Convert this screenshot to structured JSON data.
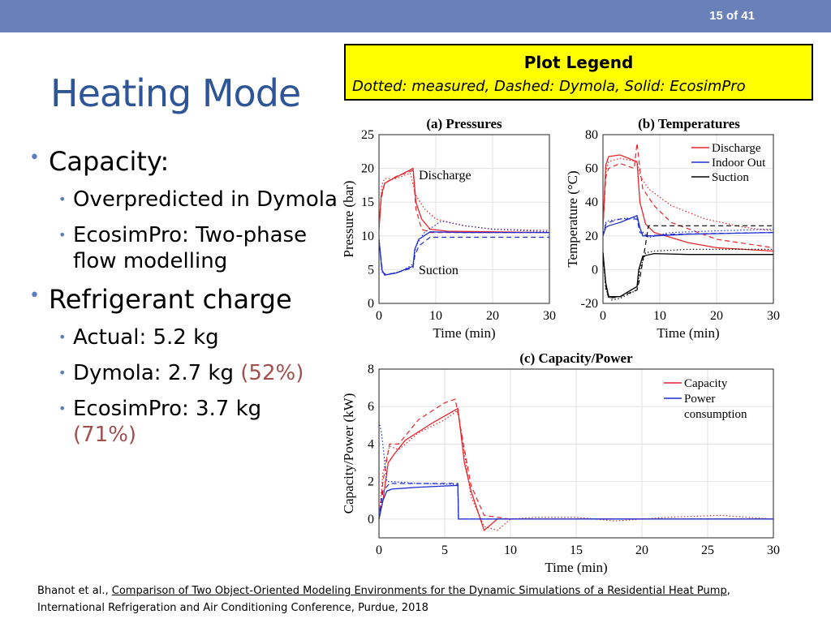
{
  "slide": {
    "number": "15 of 41",
    "title": "Heating Mode"
  },
  "legend_box": {
    "title": "Plot Legend",
    "description": "Dotted: measured, Dashed: Dymola, Solid: EcosimPro"
  },
  "bullets": {
    "capacity": "Capacity:",
    "overpredicted": "Overpredicted in Dymola",
    "ecosimpro_text": "EcosimPro: Two-phase flow modelling",
    "charge": "Refrigerant charge",
    "actual": "Actual: 5.2 kg",
    "dymola": "Dymola: 2.7 kg ",
    "dymola_pct": "(52%)",
    "ecosim": "EcosimPro: 3.7 kg",
    "ecosim_pct": "(71%)"
  },
  "citation": {
    "authors": "Bhanot et al., ",
    "link": "Comparison of Two Object-Oriented Modeling Environments for the Dynamic Simulations of a Residential Heat Pump",
    "after_link": ",",
    "line2": "International Refrigeration and Air Conditioning Conference, Purdue, 2018"
  },
  "colors": {
    "topbar": "#6a80b8",
    "title": "#2e5597",
    "bullet": "#5b7cc0",
    "pct": "#a0504e",
    "legend_bg": "#ffff00",
    "red": "#e8242a",
    "blue": "#1f2fd0",
    "black": "#000000"
  },
  "chart_data": [
    {
      "type": "line",
      "title": "(a) Pressures",
      "xlabel": "Time (min)",
      "ylabel": "Pressure (bar)",
      "xlim": [
        0,
        30
      ],
      "ylim": [
        0,
        25
      ],
      "xticks": [
        0,
        10,
        20,
        30
      ],
      "yticks": [
        0,
        5,
        10,
        15,
        20,
        25
      ],
      "grid": true,
      "annotations": [
        "Discharge",
        "Suction"
      ],
      "series": [
        {
          "color": "red",
          "style": "solid",
          "points": [
            [
              0,
              11
            ],
            [
              0.4,
              16
            ],
            [
              1,
              17.8
            ],
            [
              3,
              18.7
            ],
            [
              6,
              20
            ],
            [
              6.5,
              15
            ],
            [
              7.5,
              12.5
            ],
            [
              9,
              11
            ],
            [
              12,
              10.7
            ],
            [
              20,
              10.6
            ],
            [
              30,
              10.5
            ]
          ]
        },
        {
          "color": "red",
          "style": "dashed",
          "points": [
            [
              0,
              11
            ],
            [
              0.4,
              15.5
            ],
            [
              1,
              17.8
            ],
            [
              3,
              18.8
            ],
            [
              6,
              19.7
            ],
            [
              6.5,
              14
            ],
            [
              7.5,
              11
            ],
            [
              9,
              10.5
            ],
            [
              15,
              10.5
            ],
            [
              30,
              10.5
            ]
          ]
        },
        {
          "color": "red",
          "style": "dotted",
          "points": [
            [
              0,
              11
            ],
            [
              0.5,
              17.5
            ],
            [
              1,
              18.5
            ],
            [
              3,
              18.5
            ],
            [
              5.5,
              19.3
            ],
            [
              6.5,
              16
            ],
            [
              8,
              14
            ],
            [
              10,
              12.5
            ],
            [
              15,
              11.5
            ],
            [
              20,
              11
            ],
            [
              30,
              10.8
            ]
          ]
        },
        {
          "color": "blue",
          "style": "solid",
          "points": [
            [
              0,
              9.5
            ],
            [
              0.5,
              5
            ],
            [
              1,
              4.2
            ],
            [
              3,
              4.5
            ],
            [
              6,
              5.5
            ],
            [
              6.3,
              8
            ],
            [
              7,
              9.5
            ],
            [
              9,
              10.6
            ],
            [
              15,
              10.5
            ],
            [
              30,
              10.5
            ]
          ]
        },
        {
          "color": "blue",
          "style": "dashed",
          "points": [
            [
              0,
              9.5
            ],
            [
              0.6,
              4.8
            ],
            [
              1,
              4.3
            ],
            [
              3,
              4.5
            ],
            [
              6,
              5.3
            ],
            [
              6.3,
              7
            ],
            [
              7,
              8.5
            ],
            [
              9,
              9.8
            ],
            [
              15,
              9.8
            ],
            [
              30,
              9.8
            ]
          ]
        },
        {
          "color": "blue",
          "style": "dotted",
          "points": [
            [
              0,
              9.5
            ],
            [
              0.6,
              4.5
            ],
            [
              1.5,
              4.3
            ],
            [
              4,
              4.8
            ],
            [
              6,
              5.8
            ],
            [
              6.5,
              8.5
            ],
            [
              8,
              10.5
            ],
            [
              11,
              12.2
            ],
            [
              15,
              11.5
            ],
            [
              20,
              11
            ],
            [
              30,
              10.6
            ]
          ]
        }
      ]
    },
    {
      "type": "line",
      "title": "(b) Temperatures",
      "xlabel": "Time (min)",
      "ylabel": "Temperature (°C)",
      "xlim": [
        0,
        30
      ],
      "ylim": [
        -20,
        80
      ],
      "xticks": [
        0,
        10,
        20,
        30
      ],
      "yticks": [
        -20,
        0,
        20,
        40,
        60,
        80
      ],
      "grid": true,
      "legend": {
        "position": "top-right",
        "entries": [
          {
            "name": "Discharge",
            "color": "red"
          },
          {
            "name": "Indoor Out",
            "color": "blue"
          },
          {
            "name": "Suction",
            "color": "black"
          }
        ]
      },
      "series": [
        {
          "color": "red",
          "style": "solid",
          "points": [
            [
              0,
              25
            ],
            [
              0.5,
              62
            ],
            [
              1,
              67
            ],
            [
              3,
              68
            ],
            [
              6,
              64
            ],
            [
              6.5,
              40
            ],
            [
              7.5,
              27
            ],
            [
              9,
              22
            ],
            [
              15,
              16
            ],
            [
              20,
              13
            ],
            [
              30,
              11
            ]
          ]
        },
        {
          "color": "red",
          "style": "dashed",
          "points": [
            [
              0,
              25
            ],
            [
              0.5,
              55
            ],
            [
              1,
              60
            ],
            [
              3,
              63
            ],
            [
              5.5,
              60
            ],
            [
              6,
              75
            ],
            [
              6.5,
              60
            ],
            [
              7,
              48
            ],
            [
              9,
              38
            ],
            [
              12,
              28
            ],
            [
              20,
              18
            ],
            [
              30,
              13
            ]
          ]
        },
        {
          "color": "red",
          "style": "dotted",
          "points": [
            [
              0,
              25
            ],
            [
              0.5,
              58
            ],
            [
              1,
              64
            ],
            [
              3,
              66
            ],
            [
              6,
              64
            ],
            [
              6.5,
              56
            ],
            [
              8,
              48
            ],
            [
              12,
              38
            ],
            [
              18,
              30
            ],
            [
              25,
              25
            ],
            [
              30,
              23
            ]
          ]
        },
        {
          "color": "blue",
          "style": "solid",
          "points": [
            [
              0,
              20
            ],
            [
              0.5,
              25
            ],
            [
              1,
              26
            ],
            [
              3,
              28
            ],
            [
              6,
              32
            ],
            [
              6.5,
              25
            ],
            [
              7,
              20
            ],
            [
              9,
              20
            ],
            [
              15,
              21
            ],
            [
              30,
              22
            ]
          ]
        },
        {
          "color": "blue",
          "style": "dashed",
          "points": [
            [
              0,
              20
            ],
            [
              0.5,
              27
            ],
            [
              1,
              28
            ],
            [
              3,
              30
            ],
            [
              6,
              30
            ],
            [
              6.5,
              22
            ],
            [
              8,
              20
            ],
            [
              12,
              21
            ],
            [
              30,
              22
            ]
          ]
        },
        {
          "color": "blue",
          "style": "dotted",
          "points": [
            [
              0,
              20
            ],
            [
              0.5,
              28
            ],
            [
              1,
              29
            ],
            [
              3,
              30
            ],
            [
              6,
              31
            ],
            [
              6.5,
              24
            ],
            [
              8,
              19
            ],
            [
              12,
              22
            ],
            [
              20,
              23
            ],
            [
              30,
              24
            ]
          ]
        },
        {
          "color": "black",
          "style": "solid",
          "points": [
            [
              0,
              10
            ],
            [
              0.5,
              -8
            ],
            [
              1,
              -16
            ],
            [
              3,
              -16
            ],
            [
              6,
              -10
            ],
            [
              6.3,
              0
            ],
            [
              7,
              8
            ],
            [
              9,
              9.5
            ],
            [
              15,
              9
            ],
            [
              30,
              9
            ]
          ]
        },
        {
          "color": "black",
          "style": "dashed",
          "points": [
            [
              0,
              10
            ],
            [
              0.5,
              -10
            ],
            [
              1,
              -17
            ],
            [
              3,
              -16
            ],
            [
              6,
              -12
            ],
            [
              6.5,
              -5
            ],
            [
              7.5,
              15
            ],
            [
              8,
              26
            ],
            [
              15,
              26
            ],
            [
              30,
              26
            ]
          ]
        },
        {
          "color": "black",
          "style": "dotted",
          "points": [
            [
              0,
              10
            ],
            [
              0.5,
              -12
            ],
            [
              1.5,
              -18
            ],
            [
              3,
              -17
            ],
            [
              6,
              -12
            ],
            [
              6.5,
              0
            ],
            [
              7.5,
              10
            ],
            [
              9,
              11
            ],
            [
              15,
              12
            ],
            [
              30,
              12
            ]
          ]
        }
      ]
    },
    {
      "type": "line",
      "title": "(c) Capacity/Power",
      "xlabel": "Time (min)",
      "ylabel": "Capacity/Power (kW)",
      "xlim": [
        0,
        30
      ],
      "ylim": [
        -1,
        8
      ],
      "xticks": [
        0,
        5,
        10,
        15,
        20,
        25,
        30
      ],
      "yticks": [
        0,
        2,
        4,
        6,
        8
      ],
      "grid": true,
      "legend": {
        "position": "top-right",
        "entries": [
          {
            "name": "Capacity",
            "color": "red"
          },
          {
            "name": "Power consumption",
            "color": "blue"
          }
        ]
      },
      "series": [
        {
          "color": "red",
          "style": "solid",
          "points": [
            [
              0,
              0
            ],
            [
              0.3,
              1
            ],
            [
              0.7,
              3
            ],
            [
              1.2,
              3.5
            ],
            [
              2,
              4.2
            ],
            [
              4,
              5.1
            ],
            [
              6,
              5.9
            ],
            [
              6.5,
              3
            ],
            [
              7,
              1.5
            ],
            [
              8,
              -0.6
            ],
            [
              9,
              0
            ],
            [
              30,
              0
            ]
          ]
        },
        {
          "color": "red",
          "style": "dashed",
          "points": [
            [
              0,
              0
            ],
            [
              0.3,
              2
            ],
            [
              0.8,
              4
            ],
            [
              1.5,
              4
            ],
            [
              3,
              5.3
            ],
            [
              5,
              6.2
            ],
            [
              5.8,
              6.4
            ],
            [
              6.3,
              4.5
            ],
            [
              7,
              1.8
            ],
            [
              8,
              0.2
            ],
            [
              10,
              0
            ],
            [
              30,
              0
            ]
          ]
        },
        {
          "color": "red",
          "style": "dotted",
          "points": [
            [
              0,
              0
            ],
            [
              0.3,
              2.5
            ],
            [
              0.8,
              3.9
            ],
            [
              1.5,
              3.7
            ],
            [
              3,
              4.6
            ],
            [
              5,
              5.3
            ],
            [
              6,
              5.8
            ],
            [
              6.5,
              3.5
            ],
            [
              7,
              1.2
            ],
            [
              8,
              -0.4
            ],
            [
              9,
              -0.6
            ],
            [
              10,
              0
            ],
            [
              12,
              0.1
            ],
            [
              15,
              0.1
            ],
            [
              18,
              -0.1
            ],
            [
              22,
              0.1
            ],
            [
              26,
              0.2
            ],
            [
              30,
              0
            ]
          ]
        },
        {
          "color": "blue",
          "style": "solid",
          "points": [
            [
              0,
              0
            ],
            [
              0.3,
              1
            ],
            [
              0.6,
              1.5
            ],
            [
              1,
              1.6
            ],
            [
              3,
              1.7
            ],
            [
              6,
              1.8
            ],
            [
              6.05,
              0
            ],
            [
              30,
              0
            ]
          ]
        },
        {
          "color": "blue",
          "style": "dashed",
          "points": [
            [
              0,
              0
            ],
            [
              0.3,
              1.5
            ],
            [
              0.8,
              1.9
            ],
            [
              3,
              1.9
            ],
            [
              6,
              1.9
            ],
            [
              6.05,
              0
            ],
            [
              30,
              0
            ]
          ]
        },
        {
          "color": "blue",
          "style": "dotted",
          "points": [
            [
              0,
              5.2
            ],
            [
              0.2,
              4.6
            ],
            [
              0.6,
              2
            ],
            [
              1,
              2
            ],
            [
              3,
              1.9
            ],
            [
              6,
              1.85
            ],
            [
              6.05,
              0
            ],
            [
              30,
              0
            ]
          ]
        }
      ]
    }
  ]
}
